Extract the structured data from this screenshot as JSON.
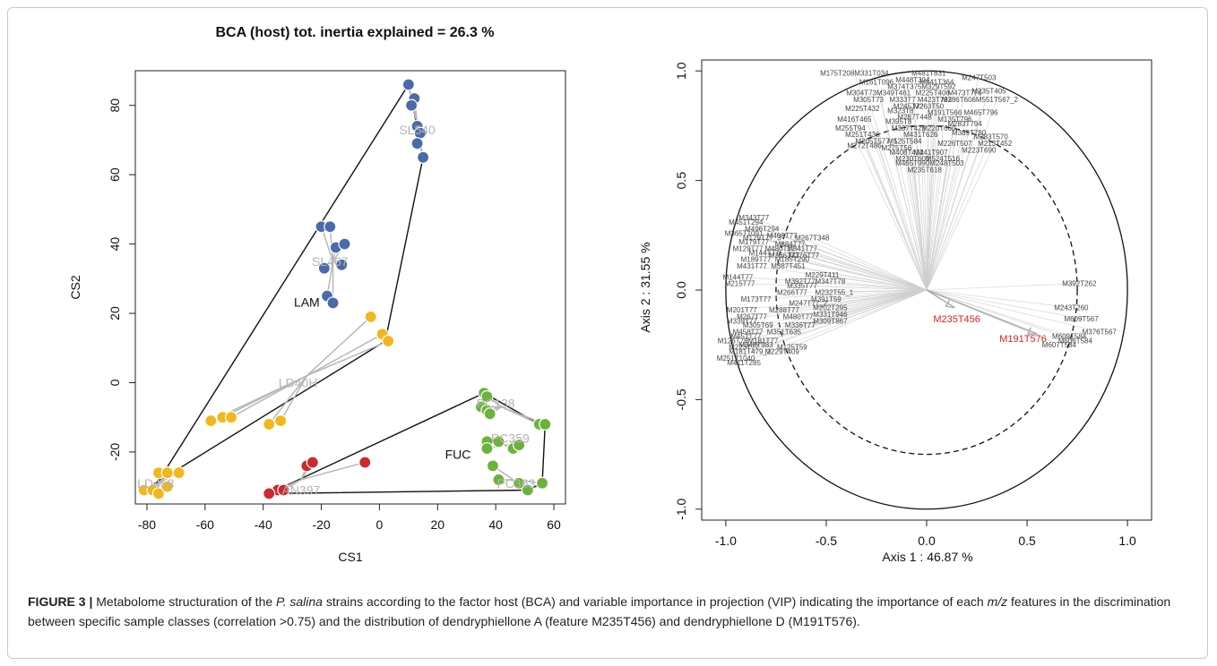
{
  "figure": {
    "caption_label": "FIGURE 3 |",
    "caption_parts": [
      {
        "t": " Metabolome structuration of the ",
        "i": false
      },
      {
        "t": "P. salina",
        "i": true
      },
      {
        "t": " strains according to the factor host (BCA) and variable importance in projection (VIP) indicating the importance of each ",
        "i": false
      },
      {
        "t": "m/z",
        "i": true
      },
      {
        "t": " features in the discrimination between specific sample classes (correlation >0.75) and the distribution of dendryphiellone A (feature M235T456) and dendryphiellone D (M191T576).",
        "i": false
      }
    ]
  },
  "chart_data": [
    {
      "type": "scatter",
      "title": "BCA (host) tot. inertia explained = 26.3 %",
      "xlabel": "CS1",
      "ylabel": "CS2",
      "xlim": [
        -84,
        64
      ],
      "ylim": [
        -35,
        90
      ],
      "xticks": [
        -80,
        -60,
        -40,
        -20,
        0,
        20,
        40,
        60
      ],
      "yticks": [
        -20,
        0,
        20,
        40,
        60,
        80
      ],
      "groups": [
        {
          "name": "SL540",
          "color": "#4a6aaa",
          "label_pos": [
            13,
            73
          ],
          "points": [
            [
              10,
              86
            ],
            [
              12,
              82
            ],
            [
              11,
              80
            ],
            [
              13,
              74
            ],
            [
              14,
              72
            ],
            [
              13,
              69
            ],
            [
              15,
              65
            ]
          ],
          "centroid": [
            13,
            75
          ]
        },
        {
          "name": "SL467",
          "color": "#4a6aaa",
          "label_pos": [
            -17,
            35
          ],
          "points": [
            [
              -20,
              45
            ],
            [
              -17,
              45
            ],
            [
              -15,
              39
            ],
            [
              -12,
              40
            ],
            [
              -13,
              34
            ],
            [
              -19,
              33
            ],
            [
              -18,
              25
            ],
            [
              -16,
              23
            ]
          ],
          "centroid": [
            -16,
            35
          ]
        },
        {
          "name": "LD40H",
          "color": "#f0b81e",
          "label_pos": [
            -28,
            0
          ],
          "points": [
            [
              -3,
              19
            ],
            [
              1,
              14
            ],
            [
              3,
              12
            ],
            [
              -58,
              -11
            ],
            [
              -54,
              -10
            ],
            [
              -51,
              -10
            ],
            [
              -38,
              -12
            ],
            [
              -34,
              -11
            ]
          ],
          "centroid": [
            -25,
            2
          ]
        },
        {
          "name": "LD458",
          "color": "#f0b81e",
          "label_pos": [
            -77,
            -29
          ],
          "points": [
            [
              -76,
              -26
            ],
            [
              -73,
              -26
            ],
            [
              -69,
              -26
            ],
            [
              -81,
              -31
            ],
            [
              -78,
              -31
            ],
            [
              -76,
              -32
            ],
            [
              -73,
              -30
            ]
          ],
          "centroid": [
            -76,
            -29
          ]
        },
        {
          "name": "AN397",
          "color": "#cc2a2e",
          "label_pos": [
            -27,
            -31
          ],
          "points": [
            [
              -25,
              -24
            ],
            [
              -23,
              -23
            ],
            [
              -5,
              -23
            ],
            [
              -35,
              -31
            ],
            [
              -33,
              -31
            ],
            [
              -38,
              -32
            ]
          ],
          "centroid": [
            -27,
            -28
          ]
        },
        {
          "name": "PC138",
          "color": "#6bb33a",
          "label_pos": [
            40,
            -6
          ],
          "points": [
            [
              36,
              -3
            ],
            [
              37,
              -4
            ],
            [
              35,
              -7
            ],
            [
              37,
              -8
            ],
            [
              38,
              -9
            ],
            [
              55,
              -12
            ],
            [
              57,
              -12
            ]
          ],
          "centroid": [
            42,
            -7
          ]
        },
        {
          "name": "PC359",
          "color": "#6bb33a",
          "label_pos": [
            45,
            -16
          ],
          "points": [
            [
              37,
              -17
            ],
            [
              41,
              -17
            ],
            [
              47,
              -18
            ],
            [
              37,
              -19
            ],
            [
              46,
              -19
            ],
            [
              48,
              -18
            ]
          ],
          "centroid": [
            43,
            -18
          ]
        },
        {
          "name": "PC363",
          "color": "#6bb33a",
          "label_pos": [
            47,
            -29
          ],
          "points": [
            [
              39,
              -24
            ],
            [
              41,
              -28
            ],
            [
              48,
              -29
            ],
            [
              51,
              -31
            ],
            [
              56,
              -29
            ]
          ],
          "centroid": [
            46,
            -28
          ]
        }
      ],
      "hulls": [
        {
          "name": "LAM",
          "label_pos": [
            -25,
            22
          ],
          "points": [
            [
              10,
              86
            ],
            [
              15,
              65
            ],
            [
              2,
              12
            ],
            [
              -81,
              -31
            ],
            [
              -78,
              -31
            ]
          ]
        },
        {
          "name": "FUC",
          "label_pos": [
            27,
            -22
          ],
          "points": [
            [
              -38,
              -32
            ],
            [
              36,
              -3
            ],
            [
              55,
              -12
            ],
            [
              57,
              -12
            ],
            [
              56,
              -29
            ],
            [
              51,
              -31
            ]
          ]
        }
      ],
      "hull_labels_shown": [
        "LAM",
        "FUC"
      ]
    },
    {
      "type": "scatter",
      "xlabel": "Axis 1 :  46.87 %",
      "ylabel": "Axis 2 :  31.55 %",
      "xlim": [
        -1.12,
        1.12
      ],
      "ylim": [
        -1.05,
        1.05
      ],
      "xticks": [
        -1.0,
        -0.5,
        0.0,
        0.5,
        1.0
      ],
      "yticks": [
        -1.0,
        -0.5,
        0.0,
        0.5,
        1.0
      ],
      "tick_labels": [
        "-1.0",
        "-0.5",
        "0.0",
        "0.5",
        "1.0"
      ],
      "circles": [
        {
          "r": 1.0,
          "style": "solid"
        },
        {
          "r": 0.75,
          "style": "dashed"
        }
      ],
      "highlighted_features": [
        {
          "name": "M235T456",
          "color": "#e02020",
          "arrow_to": [
            0.14,
            -0.08
          ],
          "label_pos": [
            0.15,
            -0.13
          ]
        },
        {
          "name": "M191T576",
          "color": "#e02020",
          "arrow_to": [
            0.55,
            -0.2
          ],
          "label_pos": [
            0.48,
            -0.22
          ]
        }
      ],
      "features": [
        {
          "n": "M175T208M331T034",
          "x": -0.36,
          "y": 0.99
        },
        {
          "n": "M481T831",
          "x": 0.01,
          "y": 0.99
        },
        {
          "n": "M247T503",
          "x": 0.26,
          "y": 0.97
        },
        {
          "n": "M448T304",
          "x": -0.07,
          "y": 0.96
        },
        {
          "n": "M441T364",
          "x": 0.05,
          "y": 0.95
        },
        {
          "n": "M161T096",
          "x": -0.25,
          "y": 0.95
        },
        {
          "n": "M374T375",
          "x": -0.11,
          "y": 0.93
        },
        {
          "n": "M329T592",
          "x": 0.06,
          "y": 0.93
        },
        {
          "n": "M235T405",
          "x": 0.31,
          "y": 0.91
        },
        {
          "n": "M304T73M349T461",
          "x": -0.24,
          "y": 0.9
        },
        {
          "n": "M225T406",
          "x": 0.03,
          "y": 0.9
        },
        {
          "n": "M473T776",
          "x": 0.19,
          "y": 0.9
        },
        {
          "n": "M305T73",
          "x": -0.29,
          "y": 0.87
        },
        {
          "n": "M333T7",
          "x": -0.12,
          "y": 0.87
        },
        {
          "n": "M423T792",
          "x": 0.04,
          "y": 0.87
        },
        {
          "n": "M386T606",
          "x": 0.16,
          "y": 0.87
        },
        {
          "n": "M551T567_2",
          "x": 0.35,
          "y": 0.87
        },
        {
          "n": "M245T72",
          "x": -0.09,
          "y": 0.84
        },
        {
          "n": "M263T50",
          "x": 0.01,
          "y": 0.84
        },
        {
          "n": "M225T432",
          "x": -0.32,
          "y": 0.83
        },
        {
          "n": "M323T8",
          "x": -0.13,
          "y": 0.82
        },
        {
          "n": "M465T796",
          "x": 0.27,
          "y": 0.81
        },
        {
          "n": "M191T566",
          "x": 0.09,
          "y": 0.81
        },
        {
          "n": "M287T448",
          "x": -0.06,
          "y": 0.79
        },
        {
          "n": "M135T796",
          "x": 0.14,
          "y": 0.78
        },
        {
          "n": "M416T465",
          "x": -0.36,
          "y": 0.78
        },
        {
          "n": "M395T8",
          "x": -0.14,
          "y": 0.77
        },
        {
          "n": "M283T794",
          "x": 0.19,
          "y": 0.76
        },
        {
          "n": "M255T94",
          "x": -0.38,
          "y": 0.74
        },
        {
          "n": "M337T423",
          "x": -0.09,
          "y": 0.74
        },
        {
          "n": "M220T660",
          "x": 0.06,
          "y": 0.74
        },
        {
          "n": "M389T780",
          "x": 0.21,
          "y": 0.72
        },
        {
          "n": "M251T436",
          "x": -0.32,
          "y": 0.71
        },
        {
          "n": "M431T626",
          "x": -0.03,
          "y": 0.71
        },
        {
          "n": "M283T570",
          "x": 0.32,
          "y": 0.7
        },
        {
          "n": "M205T577_1",
          "x": -0.25,
          "y": 0.68
        },
        {
          "n": "M525T584",
          "x": -0.11,
          "y": 0.68
        },
        {
          "n": "M226T507",
          "x": 0.14,
          "y": 0.67
        },
        {
          "n": "M213T452",
          "x": 0.34,
          "y": 0.67
        },
        {
          "n": "M272T486",
          "x": -0.31,
          "y": 0.66
        },
        {
          "n": "M275T56",
          "x": -0.15,
          "y": 0.65
        },
        {
          "n": "M408T432",
          "x": -0.1,
          "y": 0.63
        },
        {
          "n": "M441T907",
          "x": 0.02,
          "y": 0.63
        },
        {
          "n": "M223T690",
          "x": 0.26,
          "y": 0.64
        },
        {
          "n": "M230T603",
          "x": -0.07,
          "y": 0.6
        },
        {
          "n": "M524T516",
          "x": 0.08,
          "y": 0.6
        },
        {
          "n": "M465T990",
          "x": -0.07,
          "y": 0.58
        },
        {
          "n": "M248T503",
          "x": 0.1,
          "y": 0.58
        },
        {
          "n": "M235T618",
          "x": -0.01,
          "y": 0.55
        },
        {
          "n": "M343T77",
          "x": -0.86,
          "y": 0.33
        },
        {
          "n": "M451T294",
          "x": -0.9,
          "y": 0.31
        },
        {
          "n": "M496T294",
          "x": -0.82,
          "y": 0.28
        },
        {
          "n": "M365T1091",
          "x": -0.91,
          "y": 0.26
        },
        {
          "n": "M408T77",
          "x": -0.72,
          "y": 0.25
        },
        {
          "n": "M179T77_3",
          "x": -0.82,
          "y": 0.24
        },
        {
          "n": "M267T348",
          "x": -0.57,
          "y": 0.24
        },
        {
          "n": "M179T77",
          "x": -0.86,
          "y": 0.22
        },
        {
          "n": "M384T77",
          "x": -0.68,
          "y": 0.21
        },
        {
          "n": "M129T77",
          "x": -0.89,
          "y": 0.19
        },
        {
          "n": "M480T77",
          "x": -0.73,
          "y": 0.19
        },
        {
          "n": "M341T77",
          "x": -0.62,
          "y": 0.19
        },
        {
          "n": "M144T77",
          "x": -0.81,
          "y": 0.17
        },
        {
          "n": "M336T77",
          "x": -0.71,
          "y": 0.16
        },
        {
          "n": "M376T77",
          "x": -0.61,
          "y": 0.16
        },
        {
          "n": "M189T77",
          "x": -0.85,
          "y": 0.14
        },
        {
          "n": "M185T290",
          "x": -0.67,
          "y": 0.14
        },
        {
          "n": "M431T77",
          "x": -0.87,
          "y": 0.11
        },
        {
          "n": "M387T451",
          "x": -0.69,
          "y": 0.11
        },
        {
          "n": "M229T411",
          "x": -0.52,
          "y": 0.07
        },
        {
          "n": "M144T77",
          "x": -0.94,
          "y": 0.06
        },
        {
          "n": "M392T77",
          "x": -0.63,
          "y": 0.04
        },
        {
          "n": "M347T78",
          "x": -0.48,
          "y": 0.04
        },
        {
          "n": "M215T77",
          "x": -0.93,
          "y": 0.03
        },
        {
          "n": "M335T77",
          "x": -0.62,
          "y": 0.02
        },
        {
          "n": "M232T55_1",
          "x": -0.46,
          "y": -0.01
        },
        {
          "n": "M266T77",
          "x": -0.67,
          "y": -0.01
        },
        {
          "n": "M391T59",
          "x": -0.5,
          "y": -0.04
        },
        {
          "n": "M173T77",
          "x": -0.85,
          "y": -0.04
        },
        {
          "n": "M247T77_2",
          "x": -0.59,
          "y": -0.06
        },
        {
          "n": "M202T295",
          "x": -0.48,
          "y": -0.08
        },
        {
          "n": "M201T77",
          "x": -0.92,
          "y": -0.09
        },
        {
          "n": "M288T77",
          "x": -0.71,
          "y": -0.09
        },
        {
          "n": "M331T946",
          "x": -0.48,
          "y": -0.11
        },
        {
          "n": "M267T77",
          "x": -0.87,
          "y": -0.12
        },
        {
          "n": "M480T77",
          "x": -0.64,
          "y": -0.12
        },
        {
          "n": "M339T77",
          "x": -0.92,
          "y": -0.14
        },
        {
          "n": "M309T867",
          "x": -0.48,
          "y": -0.14
        },
        {
          "n": "M305T69",
          "x": -0.84,
          "y": -0.16
        },
        {
          "n": "M336T77",
          "x": -0.63,
          "y": -0.16
        },
        {
          "n": "M458T77",
          "x": -0.89,
          "y": -0.19
        },
        {
          "n": "M351T635",
          "x": -0.71,
          "y": -0.19
        },
        {
          "n": "M451T77",
          "x": -0.9,
          "y": -0.21
        },
        {
          "n": "M126T78M181T77",
          "x": -0.89,
          "y": -0.23
        },
        {
          "n": "M348T983",
          "x": -0.85,
          "y": -0.25
        },
        {
          "n": "M125T59",
          "x": -0.67,
          "y": -0.26
        },
        {
          "n": "M223T77",
          "x": -0.91,
          "y": -0.26
        },
        {
          "n": "M181T479_2",
          "x": -0.88,
          "y": -0.28
        },
        {
          "n": "M229T409",
          "x": -0.72,
          "y": -0.28
        },
        {
          "n": "M251T1040",
          "x": -0.95,
          "y": -0.31
        },
        {
          "n": "M411T285",
          "x": -0.91,
          "y": -0.33
        },
        {
          "n": "M392T262",
          "x": 0.76,
          "y": 0.03
        },
        {
          "n": "M243T260",
          "x": 0.72,
          "y": -0.08
        },
        {
          "n": "M609T567",
          "x": 0.77,
          "y": -0.13
        },
        {
          "n": "M376T567",
          "x": 0.86,
          "y": -0.19
        },
        {
          "n": "M609T584",
          "x": 0.71,
          "y": -0.21
        },
        {
          "n": "M606T584",
          "x": 0.74,
          "y": -0.23
        },
        {
          "n": "M607T584",
          "x": 0.66,
          "y": -0.25
        }
      ]
    }
  ]
}
